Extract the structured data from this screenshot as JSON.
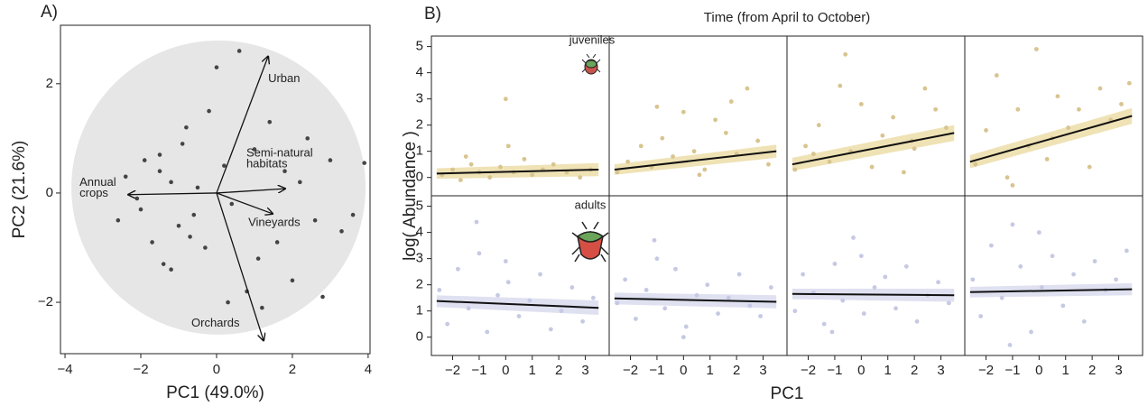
{
  "chart_data": [
    {
      "type": "biplot",
      "label": "A)",
      "xlabel": "PC1 (49.0%)",
      "ylabel": "PC2 (21.6%)",
      "xlim": [
        -4.12,
        4.05
      ],
      "ylim": [
        -2.94,
        3.07
      ],
      "xticks": [
        {
          "value": -4,
          "label": "−4"
        },
        {
          "value": -2,
          "label": "−2"
        },
        0,
        2,
        4
      ],
      "yticks": [
        {
          "value": -2,
          "label": "−2"
        },
        0,
        2
      ],
      "color": "#444444",
      "x": [
        -2.6,
        -2.4,
        -2.1,
        -1.9,
        -1.7,
        -1.5,
        -1.4,
        -1.2,
        -1,
        -0.9,
        -0.8,
        -0.6,
        -0.5,
        -0.3,
        -0.2,
        0,
        0.2,
        0.4,
        0.6,
        0.8,
        1,
        1.2,
        1.4,
        1.6,
        1.8,
        2,
        2.2,
        2.4,
        2.6,
        2.8,
        3,
        3.3,
        3.6,
        3.9,
        -1.2,
        -0.7,
        0.3,
        -2,
        1.1,
        -1.5
      ],
      "y": [
        -0.5,
        0.3,
        -0.1,
        0.6,
        -0.9,
        0.7,
        -1.3,
        0.2,
        -0.6,
        0.9,
        1.2,
        -0.4,
        0.1,
        -1.0,
        1.5,
        2.3,
        0.5,
        -0.2,
        2.6,
        -1.8,
        0.8,
        -2.1,
        1.3,
        -0.9,
        0.4,
        -1.6,
        0.2,
        1.0,
        -0.5,
        -1.9,
        0.6,
        -0.7,
        -0.4,
        0.55,
        -1.4,
        -0.8,
        -2.0,
        -0.3,
        -1.2,
        0.4
      ],
      "arrows": [
        {
          "label": [
            "Urban"
          ],
          "x": 1.36,
          "y": 2.5
        },
        {
          "label": [
            "Semi-natural",
            "habitats"
          ],
          "x": 1.81,
          "y": 0.08
        },
        {
          "label": [
            "Annual",
            "crops"
          ],
          "x": -2.33,
          "y": -0.03
        },
        {
          "label": [
            "Vineyards"
          ],
          "x": 1.48,
          "y": -0.38
        },
        {
          "label": [
            "Orchards"
          ],
          "x": 1.24,
          "y": -2.7
        }
      ]
    },
    {
      "type": "facet_scatter",
      "label": "B)",
      "title": "Time (from April to October)",
      "xlabel": "PC1",
      "ylabel": "log( Abundance )",
      "xlim": [
        -2.8,
        3.9
      ],
      "ylim": [
        -0.7,
        5.4
      ],
      "xticks": [
        {
          "value": -2,
          "label": "−2"
        },
        {
          "value": -1,
          "label": "−1"
        },
        0,
        1,
        2,
        3
      ],
      "yticks": [
        0,
        1,
        2,
        3,
        4,
        5
      ],
      "rows": [
        {
          "name": "juveniles",
          "color": "#d8c48f",
          "band_color": "#efe2b5",
          "panels": [
            {
              "x": [
                -2.4,
                -2,
                -1.7,
                -1.3,
                -1,
                -0.6,
                -0.2,
                0,
                0.3,
                0.7,
                1,
                1.4,
                1.8,
                2.3,
                2.8,
                3.2,
                -1.5,
                0.1
              ],
              "y": [
                0.1,
                0.3,
                -0.1,
                0.5,
                0.2,
                0.0,
                0.4,
                3.0,
                0.2,
                0.7,
                0.1,
                0.3,
                0.5,
                0.2,
                0.0,
                0.3,
                0.8,
                1.2
              ],
              "fit_x": [
                -2.6,
                3.5
              ],
              "fit_y": [
                0.15,
                0.3
              ],
              "ci_lower": [
                -0.05,
                0.05
              ],
              "ci_upper": [
                0.35,
                0.55
              ]
            },
            {
              "x": [
                -2.5,
                -2.1,
                -1.6,
                -1.2,
                -0.8,
                -0.4,
                0,
                0.4,
                0.8,
                1.2,
                1.6,
                2,
                2.4,
                2.8,
                3.2,
                -1,
                0.6,
                1.8
              ],
              "y": [
                0.2,
                0.6,
                1.2,
                0.4,
                1.5,
                0.8,
                2.5,
                1.0,
                0.3,
                2.2,
                1.7,
                0.9,
                3.4,
                1.4,
                0.5,
                2.7,
                0.1,
                2.9
              ],
              "fit_x": [
                -2.6,
                3.5
              ],
              "fit_y": [
                0.3,
                1.0
              ],
              "ci_lower": [
                0.1,
                0.75
              ],
              "ci_upper": [
                0.5,
                1.25
              ]
            },
            {
              "x": [
                -2.5,
                -2.1,
                -1.6,
                -1.2,
                -0.8,
                -0.4,
                0,
                0.4,
                -0.6,
                0.8,
                1.2,
                1.6,
                2,
                2.4,
                2.8,
                3.2,
                -1.8,
                1.9
              ],
              "y": [
                0.3,
                1.2,
                2.0,
                0.6,
                3.5,
                1.0,
                2.8,
                0.4,
                4.7,
                1.6,
                2.3,
                0.2,
                1.1,
                3.4,
                2.6,
                1.9,
                0.9,
                1.4
              ],
              "fit_x": [
                -2.6,
                3.5
              ],
              "fit_y": [
                0.5,
                1.7
              ],
              "ci_lower": [
                0.25,
                1.4
              ],
              "ci_upper": [
                0.75,
                2.0
              ]
            },
            {
              "x": [
                -2.4,
                -2,
                -1.6,
                -1.2,
                -0.8,
                -0.4,
                -0.1,
                0.3,
                0.7,
                1.1,
                1.5,
                1.9,
                2.3,
                2.7,
                3.1,
                3.4,
                -1,
                0.5
              ],
              "y": [
                0.5,
                1.8,
                3.9,
                0.0,
                2.6,
                1.2,
                4.9,
                0.7,
                3.1,
                1.9,
                2.6,
                0.4,
                3.4,
                2.2,
                2.8,
                3.6,
                -0.3,
                1.5
              ],
              "fit_x": [
                -2.6,
                3.5
              ],
              "fit_y": [
                0.6,
                2.35
              ],
              "ci_lower": [
                0.35,
                2.05
              ],
              "ci_upper": [
                0.85,
                2.65
              ]
            }
          ]
        },
        {
          "name": "adults",
          "color": "#c6c9e3",
          "band_color": "#dfe1f1",
          "panels": [
            {
              "x": [
                -2.5,
                -2.2,
                -1.8,
                -1.4,
                -1,
                -0.7,
                -0.3,
                0.1,
                0.5,
                0.9,
                1.3,
                1.7,
                2.1,
                2.5,
                2.9,
                3.3,
                -1.1,
                0
              ],
              "y": [
                1.8,
                0.5,
                2.6,
                1.1,
                3.2,
                0.2,
                1.6,
                2.1,
                0.8,
                1.4,
                2.4,
                0.3,
                1.0,
                1.9,
                0.6,
                1.5,
                4.4,
                2.9
              ],
              "fit_x": [
                -2.6,
                3.5
              ],
              "fit_y": [
                1.38,
                1.12
              ],
              "ci_lower": [
                1.15,
                0.85
              ],
              "ci_upper": [
                1.6,
                1.4
              ]
            },
            {
              "x": [
                -2.5,
                -2.2,
                -1.8,
                -1.4,
                -1,
                -0.7,
                -0.3,
                0.1,
                0.5,
                0.9,
                1.3,
                1.7,
                2.1,
                2.5,
                2.9,
                3.3,
                -1.1,
                0
              ],
              "y": [
                1.3,
                2.2,
                0.7,
                1.8,
                3.0,
                1.1,
                2.6,
                0.4,
                1.6,
                2.0,
                0.9,
                1.5,
                2.4,
                1.2,
                0.8,
                1.9,
                3.7,
                0.0
              ],
              "fit_x": [
                -2.6,
                3.5
              ],
              "fit_y": [
                1.48,
                1.35
              ],
              "ci_lower": [
                1.25,
                1.1
              ],
              "ci_upper": [
                1.7,
                1.6
              ]
            },
            {
              "x": [
                -2.5,
                -2.2,
                -1.8,
                -1.4,
                -1,
                -0.7,
                -0.3,
                0.1,
                0.5,
                0.9,
                1.3,
                1.7,
                2.1,
                2.5,
                2.9,
                3.3,
                -1.1,
                0
              ],
              "y": [
                1.0,
                2.4,
                1.7,
                0.5,
                2.8,
                1.4,
                3.8,
                0.9,
                1.9,
                2.3,
                1.1,
                2.7,
                0.6,
                1.6,
                2.1,
                1.3,
                0.2,
                3.1
              ],
              "fit_x": [
                -2.6,
                3.5
              ],
              "fit_y": [
                1.65,
                1.6
              ],
              "ci_lower": [
                1.45,
                1.35
              ],
              "ci_upper": [
                1.85,
                1.85
              ]
            },
            {
              "x": [
                -2.5,
                -2.2,
                -1.8,
                -1.4,
                -1,
                -0.7,
                -0.3,
                0.1,
                0.5,
                0.9,
                1.3,
                1.7,
                2.1,
                2.5,
                2.9,
                3.3,
                -1.1,
                0
              ],
              "y": [
                2.2,
                0.8,
                3.5,
                1.5,
                4.3,
                2.7,
                0.2,
                1.9,
                3.1,
                1.2,
                2.4,
                0.6,
                2.9,
                1.8,
                2.2,
                3.3,
                -0.3,
                4.0
              ],
              "fit_x": [
                -2.6,
                3.5
              ],
              "fit_y": [
                1.72,
                1.83
              ],
              "ci_lower": [
                1.52,
                1.6
              ],
              "ci_upper": [
                1.92,
                2.06
              ]
            }
          ]
        }
      ]
    }
  ]
}
